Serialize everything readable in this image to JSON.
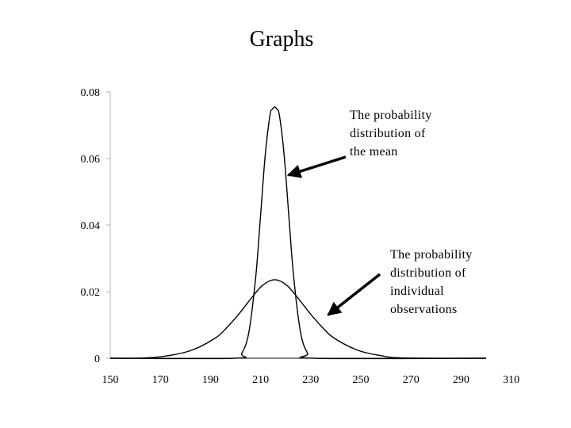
{
  "slide": {
    "title": "Graphs"
  },
  "chart_data": {
    "type": "line",
    "title": "",
    "xlabel": "",
    "ylabel": "",
    "xlim": [
      150,
      310
    ],
    "ylim": [
      0,
      0.08
    ],
    "x_ticks": [
      150,
      170,
      190,
      210,
      230,
      250,
      270,
      290,
      310
    ],
    "x_tick_labels": [
      "150",
      "170",
      "190",
      "210",
      "230",
      "250",
      "270",
      "290",
      "310"
    ],
    "y_ticks": [
      0,
      0.02,
      0.04,
      0.06,
      0.08
    ],
    "y_tick_labels": [
      "0",
      "0.02",
      "0.04",
      "0.06",
      "0.08"
    ],
    "grid": false,
    "series": [
      {
        "x": [
          150,
          165,
          175,
          185,
          195,
          200,
          205,
          210,
          215,
          220,
          225,
          230,
          235,
          240,
          245,
          255,
          265,
          275,
          310
        ],
        "y": [
          0,
          0.0001,
          0.0008,
          0.0025,
          0.0062,
          0.0095,
          0.0135,
          0.018,
          0.022,
          0.0236,
          0.022,
          0.018,
          0.0135,
          0.0095,
          0.0062,
          0.0025,
          0.0008,
          0.0001,
          0
        ]
      },
      {
        "x": [
          150,
          203,
          206,
          209,
          212,
          214,
          216,
          218,
          219,
          220,
          221,
          222,
          224,
          226,
          228,
          231,
          234,
          237,
          310
        ],
        "y": [
          0,
          0,
          0.0015,
          0.0078,
          0.025,
          0.043,
          0.0612,
          0.073,
          0.0748,
          0.0755,
          0.0748,
          0.073,
          0.0612,
          0.043,
          0.025,
          0.0078,
          0.0015,
          0,
          0
        ]
      }
    ],
    "annotations": [
      {
        "id": "mean",
        "lines": [
          "The probability",
          "distribution of",
          "the mean"
        ],
        "arrow_tip": [
          220,
          0.055
        ]
      },
      {
        "id": "individual",
        "lines": [
          "The probability",
          "distribution of",
          "individual",
          "observations"
        ],
        "arrow_tip": [
          237,
          0.013
        ]
      }
    ]
  }
}
